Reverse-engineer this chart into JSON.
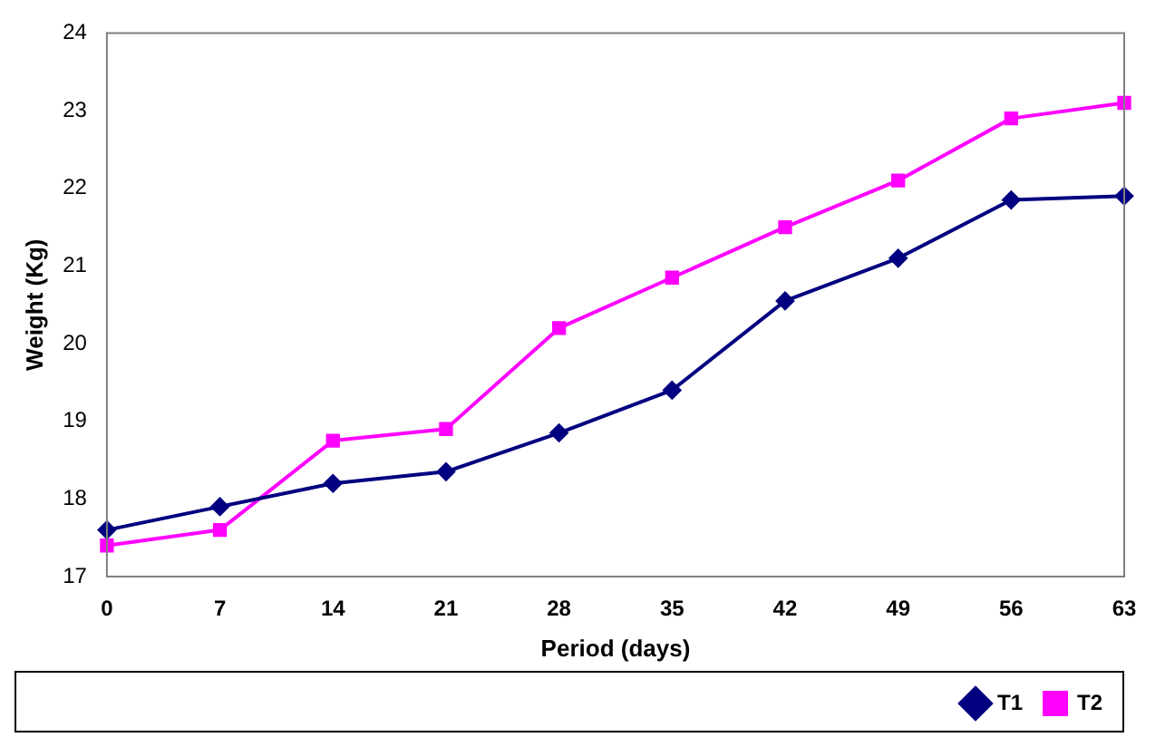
{
  "chart_data": {
    "type": "line",
    "xlabel": "Period (days)",
    "ylabel": "Weight (Kg)",
    "categories": [
      "0",
      "7",
      "14",
      "21",
      "28",
      "35",
      "42",
      "49",
      "56",
      "63"
    ],
    "series": [
      {
        "name": "T1",
        "color": "#000080",
        "marker": "diamond",
        "values": [
          17.6,
          17.9,
          18.2,
          18.35,
          18.85,
          19.4,
          20.55,
          21.1,
          21.85,
          21.9
        ]
      },
      {
        "name": "T2",
        "color": "#ff00ff",
        "marker": "square",
        "values": [
          17.4,
          17.6,
          18.75,
          18.9,
          20.2,
          20.85,
          21.5,
          22.1,
          22.9,
          23.1
        ]
      }
    ],
    "ylim": [
      17,
      24
    ],
    "yticks": [
      17,
      18,
      19,
      20,
      21,
      22,
      23,
      24
    ],
    "grid": false,
    "legend": "bottom right"
  }
}
